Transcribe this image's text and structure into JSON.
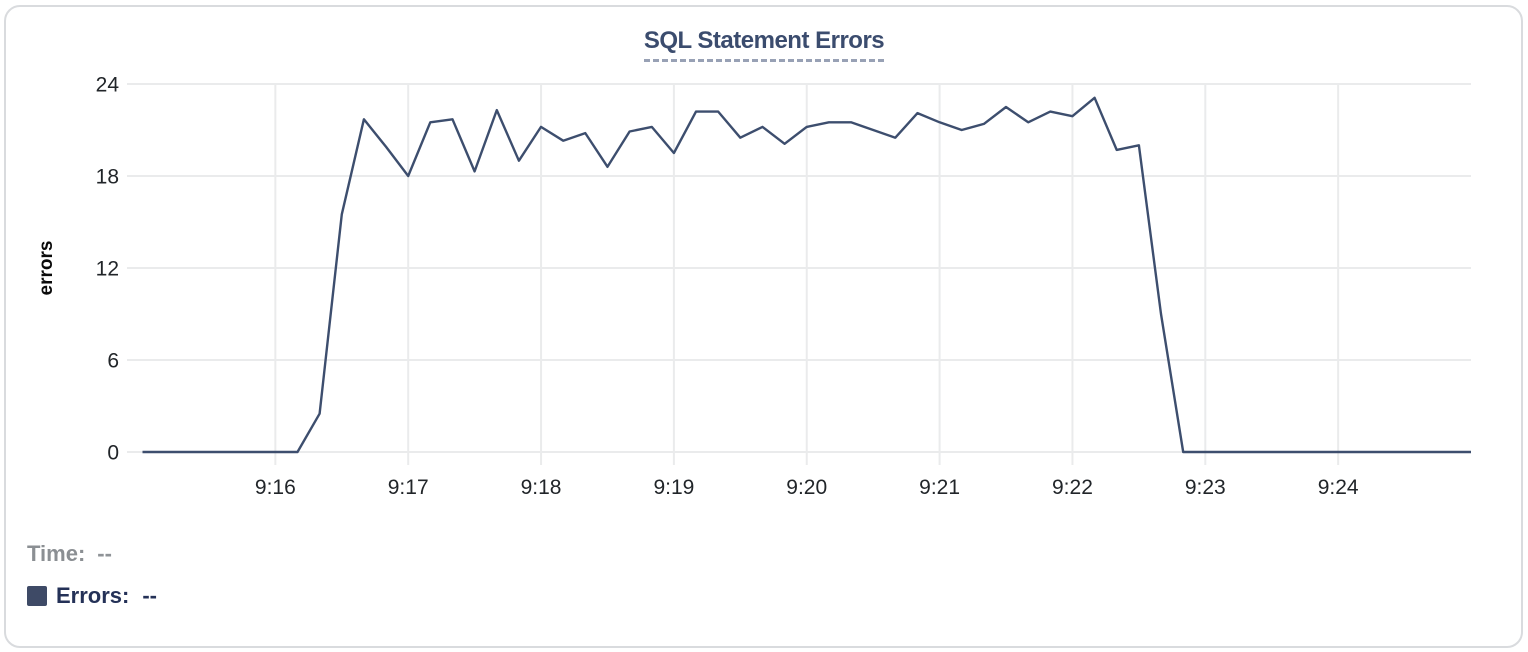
{
  "chart_data": {
    "type": "line",
    "title": "SQL Statement Errors",
    "xlabel": "",
    "ylabel": "errors",
    "ylim": [
      0,
      24
    ],
    "y_ticks": [
      0,
      6,
      12,
      18,
      24
    ],
    "x_tick_labels": [
      "9:16",
      "9:17",
      "9:18",
      "9:19",
      "9:20",
      "9:21",
      "9:22",
      "9:23",
      "9:24"
    ],
    "grid": true,
    "legend_position": "bottom-left",
    "series": [
      {
        "name": "Errors",
        "color": "#3d4e6e",
        "x": [
          "9:15:00",
          "9:15:10",
          "9:15:20",
          "9:15:30",
          "9:15:40",
          "9:15:50",
          "9:16:00",
          "9:16:10",
          "9:16:20",
          "9:16:30",
          "9:16:40",
          "9:16:50",
          "9:17:00",
          "9:17:10",
          "9:17:20",
          "9:17:30",
          "9:17:40",
          "9:17:50",
          "9:18:00",
          "9:18:10",
          "9:18:20",
          "9:18:30",
          "9:18:40",
          "9:18:50",
          "9:19:00",
          "9:19:10",
          "9:19:20",
          "9:19:30",
          "9:19:40",
          "9:19:50",
          "9:20:00",
          "9:20:10",
          "9:20:20",
          "9:20:30",
          "9:20:40",
          "9:20:50",
          "9:21:00",
          "9:21:10",
          "9:21:20",
          "9:21:30",
          "9:21:40",
          "9:21:50",
          "9:22:00",
          "9:22:10",
          "9:22:20",
          "9:22:30",
          "9:22:40",
          "9:22:50",
          "9:23:00",
          "9:23:10",
          "9:23:20",
          "9:23:30",
          "9:23:40",
          "9:23:50",
          "9:24:00",
          "9:24:10",
          "9:24:20",
          "9:24:30",
          "9:24:40",
          "9:24:50",
          "9:25:00"
        ],
        "values": [
          0,
          0,
          0,
          0,
          0,
          0,
          0,
          0,
          2.5,
          15.5,
          21.7,
          19.9,
          18,
          21.5,
          21.7,
          18.3,
          22.3,
          19,
          21.2,
          20.3,
          20.8,
          18.6,
          20.9,
          21.2,
          19.5,
          22.2,
          22.2,
          20.5,
          21.2,
          20.1,
          21.2,
          21.5,
          21.5,
          21.0,
          20.5,
          22.1,
          21.5,
          21.0,
          21.4,
          22.5,
          21.5,
          22.2,
          21.9,
          23.1,
          19.7,
          20,
          9,
          0,
          0,
          0,
          0,
          0,
          0,
          0,
          0,
          0,
          0,
          0,
          0,
          0,
          0
        ]
      }
    ]
  },
  "footer": {
    "time_label": "Time:",
    "time_value": "--",
    "errors_label": "Errors:",
    "errors_value": "--",
    "swatch_color": "#3e4a66"
  },
  "colors": {
    "accent": "#3d4e6e",
    "title": "#3b4c6e",
    "grid": "#eaebec"
  }
}
